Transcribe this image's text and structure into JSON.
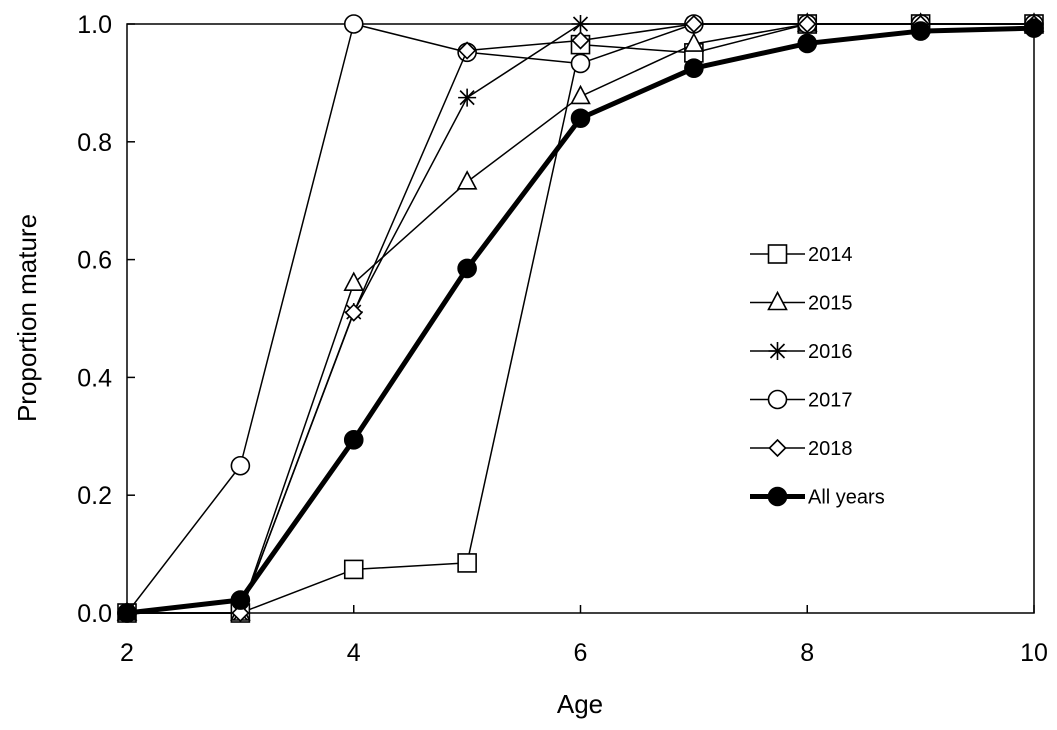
{
  "chart_data": {
    "type": "line",
    "title": "",
    "xlabel": "Age",
    "ylabel": "Proportion mature",
    "xlim": [
      2,
      10
    ],
    "ylim": [
      0,
      1
    ],
    "x_ticks": [
      "2",
      "4",
      "6",
      "8",
      "10"
    ],
    "x_tick_values": [
      2,
      4,
      6,
      8,
      10
    ],
    "y_ticks": [
      "0.0",
      "0.2",
      "0.4",
      "0.6",
      "0.8",
      "1.0"
    ],
    "y_tick_values": [
      0,
      0.2,
      0.4,
      0.6,
      0.8,
      1.0
    ],
    "grid": false,
    "legend_position": "right",
    "x": [
      2,
      3,
      4,
      5,
      6,
      7,
      8,
      9,
      10
    ],
    "series": [
      {
        "name": "2014",
        "marker": "square",
        "color": "#000000",
        "bold": false,
        "values": [
          0,
          0,
          0.074,
          0.085,
          0.965,
          0.951,
          1.0,
          1.0,
          1.0
        ]
      },
      {
        "name": "2015",
        "marker": "triangle",
        "color": "#000000",
        "bold": false,
        "values": [
          0,
          0,
          0.56,
          0.732,
          0.877,
          0.966,
          1.0,
          1.0,
          1.0
        ]
      },
      {
        "name": "2016",
        "marker": "star",
        "color": "#000000",
        "bold": false,
        "values": [
          0,
          0,
          0.511,
          0.875,
          1.0,
          1.0,
          1.0,
          1.0,
          1.0
        ]
      },
      {
        "name": "2017",
        "marker": "circle-open",
        "color": "#000000",
        "bold": false,
        "values": [
          0,
          0.25,
          1.0,
          0.952,
          0.933,
          1.0,
          1.0,
          1.0,
          1.0
        ]
      },
      {
        "name": "2018",
        "marker": "diamond",
        "color": "#000000",
        "bold": false,
        "values": [
          0,
          0,
          0.51,
          0.955,
          0.972,
          1.0,
          1.0,
          1.0,
          1.0
        ]
      },
      {
        "name": "All years",
        "marker": "circle-filled",
        "color": "#000000",
        "bold": true,
        "values": [
          0,
          0.022,
          0.294,
          0.585,
          0.84,
          0.925,
          0.967,
          0.988,
          0.993
        ]
      }
    ]
  }
}
